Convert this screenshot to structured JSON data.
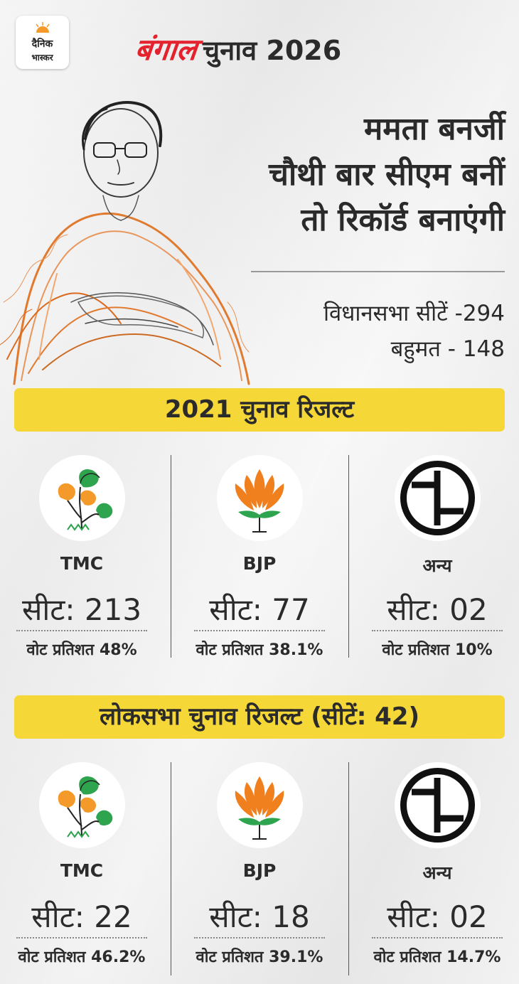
{
  "brand": {
    "line1": "दैनिक",
    "line2": "भास्कर"
  },
  "header": {
    "state": "बंगाल",
    "title": "चुनाव 2026"
  },
  "headline": {
    "line1": "ममता बनर्जी",
    "line2": "चौथी बार सीएम बनीं",
    "line3": "तो रिकॉर्ड बनाएंगी"
  },
  "facts": {
    "seats": "विधानसभा सीटें -294",
    "majority": "बहुमत - 148"
  },
  "colors": {
    "banner": "#f5d737",
    "brand_red": "#e3222e",
    "tmc_orange": "#f39a2a",
    "tmc_green": "#2ea44f",
    "bjp_orange": "#f07f1e"
  },
  "section2021": {
    "title": "2021 चुनाव रिजल्ट",
    "parties": [
      {
        "icon": "tmc-flower-icon",
        "name": "TMC",
        "seats": "सीट: 213",
        "vote": "वोट प्रतिशत 48%"
      },
      {
        "icon": "bjp-lotus-icon",
        "name": "BJP",
        "seats": "सीट: 77",
        "vote": "वोट प्रतिशत 38.1%"
      },
      {
        "icon": "others-symbol-icon",
        "name": "अन्य",
        "seats": "सीट: 02",
        "vote": "वोट प्रतिशत 10%"
      }
    ]
  },
  "sectionLok": {
    "title": "लोकसभा चुनाव रिजल्ट (सीटें: 42)",
    "parties": [
      {
        "icon": "tmc-flower-icon",
        "name": "TMC",
        "seats": "सीट: 22",
        "vote": "वोट प्रतिशत 46.2%"
      },
      {
        "icon": "bjp-lotus-icon",
        "name": "BJP",
        "seats": "सीट: 18",
        "vote": "वोट प्रतिशत 39.1%"
      },
      {
        "icon": "others-symbol-icon",
        "name": "अन्य",
        "seats": "सीट: 02",
        "vote": "वोट प्रतिशत 14.7%"
      }
    ]
  }
}
